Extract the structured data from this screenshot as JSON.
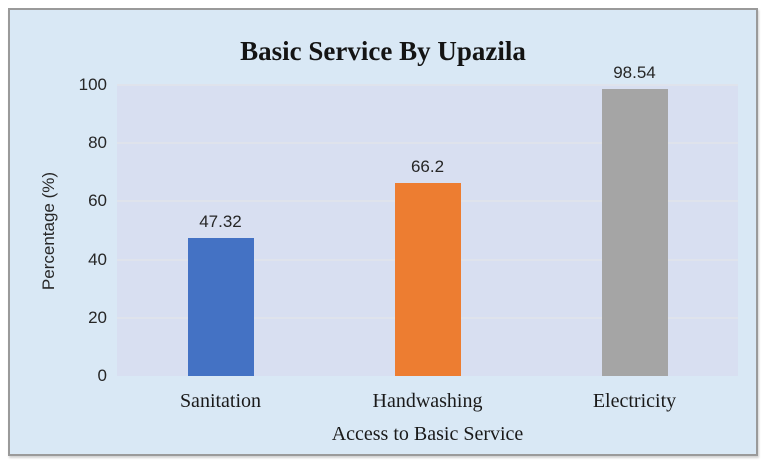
{
  "chart_data": {
    "type": "bar",
    "title": "Basic Service By Upazila",
    "categories": [
      "Sanitation",
      "Handwashing",
      "Electricity"
    ],
    "values": [
      47.32,
      66.2,
      98.54
    ],
    "value_labels": [
      "47.32",
      "66.2",
      "98.54"
    ],
    "bar_colors": [
      "#4472C4",
      "#ED7D31",
      "#A5A5A5"
    ],
    "xlabel": "Access to Basic Service",
    "ylabel": "Percentage (%)",
    "ylim": [
      0,
      100
    ],
    "yticks": [
      0,
      20,
      40,
      60,
      80,
      100
    ],
    "grid": true,
    "legend": false
  },
  "colors": {
    "frame_background": "#d9e8f5",
    "plot_background": "#d8dff1",
    "gridline": "#dfe3ec",
    "frame_border": "#9a9a9a",
    "text": "#262626"
  }
}
